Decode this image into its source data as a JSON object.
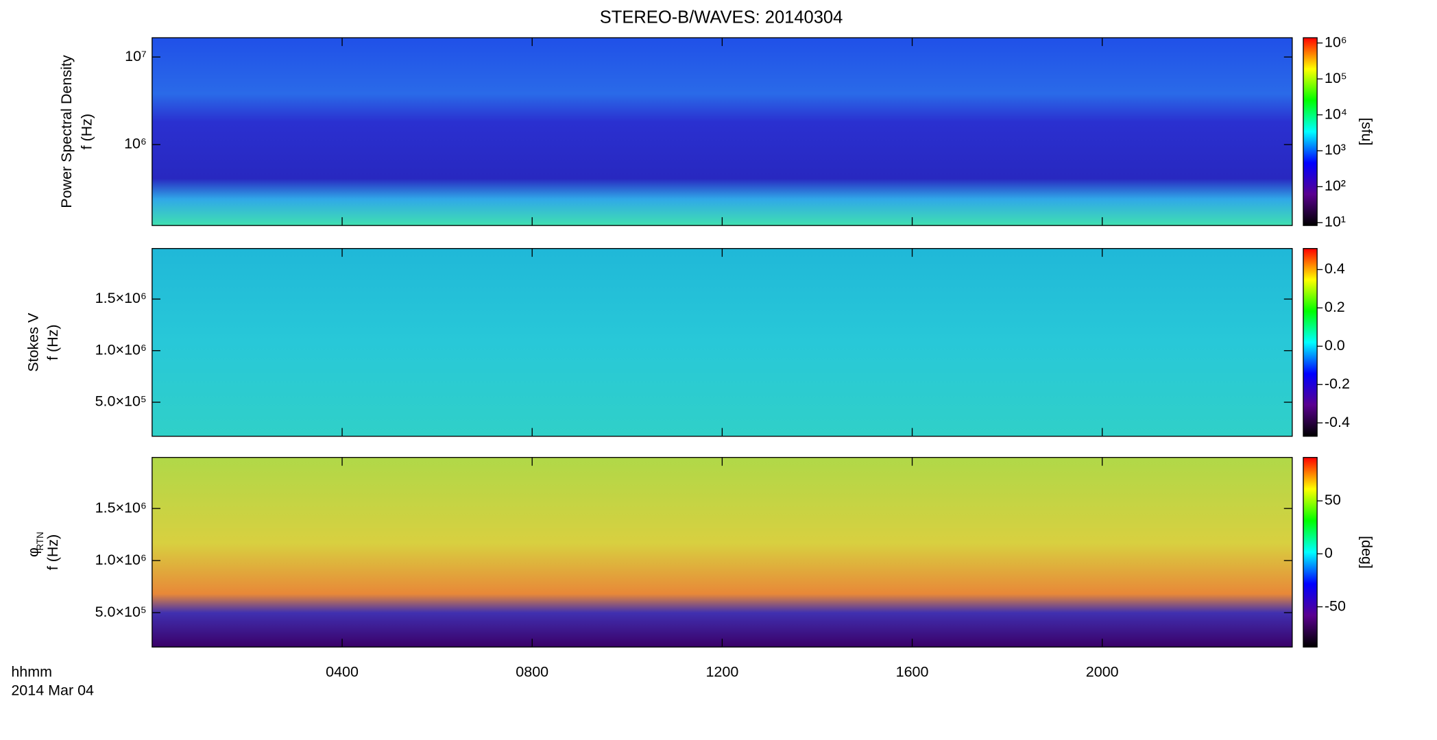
{
  "title": "STEREO-B/WAVES: 20140304",
  "colormap": [
    "#000000",
    "#5a0090",
    "#0000ff",
    "#00ffff",
    "#00ff00",
    "#ffff00",
    "#ff0000"
  ],
  "x_axis": {
    "label": "hhmm",
    "date": "2014 Mar 04",
    "xlim": [
      0,
      24
    ],
    "xticks": [
      {
        "value": 4,
        "label": "0400"
      },
      {
        "value": 8,
        "label": "0800"
      },
      {
        "value": 12,
        "label": "1200"
      },
      {
        "value": 16,
        "label": "1600"
      },
      {
        "value": 20,
        "label": "2000"
      }
    ]
  },
  "chart_data": [
    {
      "type": "heatmap",
      "ylabel_lines": [
        "Power Spectral Density",
        "f (Hz)"
      ],
      "ylog": true,
      "ylim": [
        119000,
        16600000
      ],
      "yticks": [
        {
          "value": 1000000,
          "label": "10⁶"
        },
        {
          "value": 10000000,
          "label": "10⁷"
        }
      ],
      "clog": true,
      "clim": [
        8.3,
        1400000
      ],
      "clabel": "[sfu]",
      "cticks": [
        {
          "value": 10,
          "label": "10¹"
        },
        {
          "value": 100,
          "label": "10²"
        },
        {
          "value": 1000,
          "label": "10³"
        },
        {
          "value": 10000,
          "label": "10⁴"
        },
        {
          "value": 100000,
          "label": "10⁵"
        },
        {
          "value": 1000000,
          "label": "10⁶"
        }
      ]
    },
    {
      "type": "heatmap",
      "ylabel_lines": [
        "Stokes V",
        "f (Hz)"
      ],
      "ylog": false,
      "ylim": [
        170000,
        1990000
      ],
      "yticks": [
        {
          "value": 500000,
          "label": "5.0×10⁵"
        },
        {
          "value": 1000000,
          "label": "1.0×10⁶"
        },
        {
          "value": 1500000,
          "label": "1.5×10⁶"
        }
      ],
      "clog": false,
      "clim": [
        -0.47,
        0.51
      ],
      "cticks": [
        -0.4,
        -0.2,
        {
          "value": 0,
          "label": "0.0"
        },
        0.2,
        0.4
      ]
    },
    {
      "type": "heatmap",
      "ylabel_lines": [
        "φ",
        "f (Hz)"
      ],
      "ylabel_sub": "RTN",
      "ylog": false,
      "ylim": [
        170000,
        1990000
      ],
      "yticks": [
        {
          "value": 500000,
          "label": "5.0×10⁵"
        },
        {
          "value": 1000000,
          "label": "1.0×10⁶"
        },
        {
          "value": 1500000,
          "label": "1.5×10⁶"
        }
      ],
      "clog": false,
      "clim": [
        -88,
        91
      ],
      "clabel": "[deg]",
      "cticks": [
        -50,
        0,
        50
      ]
    }
  ]
}
